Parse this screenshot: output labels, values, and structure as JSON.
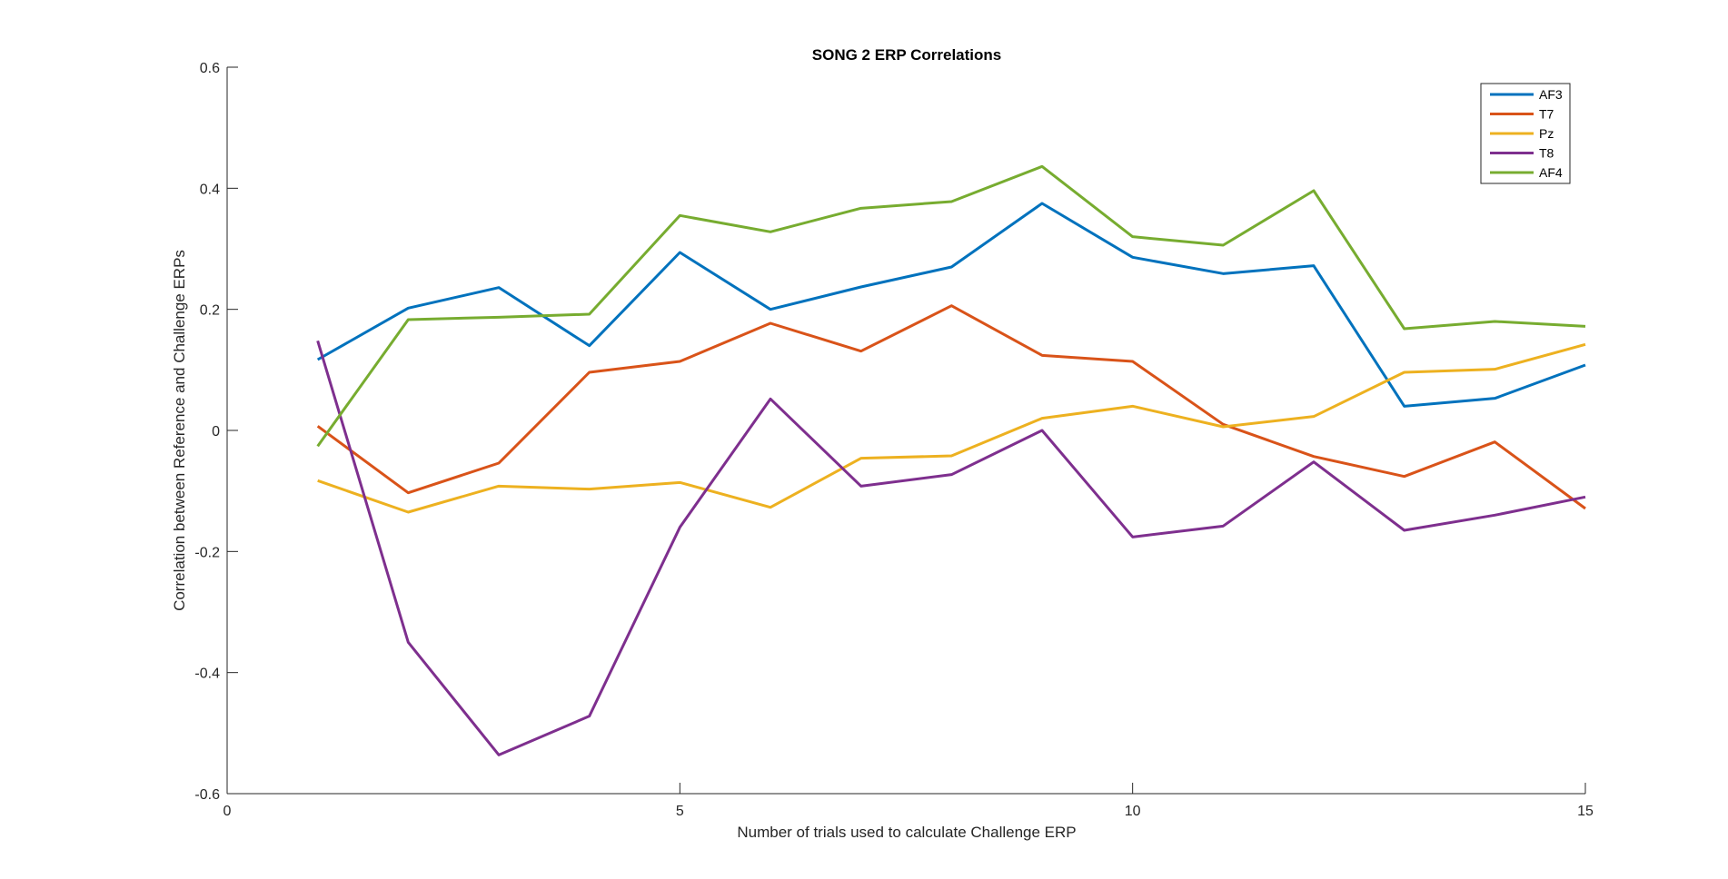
{
  "chart_data": {
    "type": "line",
    "title": "SONG 2 ERP Correlations",
    "xlabel": "Number of trials used to calculate Challenge ERP",
    "ylabel": "Correlation between Reference and Challenge ERPs",
    "xlim": [
      0,
      15
    ],
    "ylim": [
      -0.6,
      0.6
    ],
    "xticks": [
      0,
      5,
      10,
      15
    ],
    "xtick_labels": [
      "0",
      "5",
      "10",
      "15"
    ],
    "yticks": [
      -0.6,
      -0.4,
      -0.2,
      0,
      0.2,
      0.4,
      0.6
    ],
    "ytick_labels": [
      "-0.6",
      "-0.4",
      "-0.2",
      "0",
      "0.2",
      "0.4",
      "0.6"
    ],
    "grid": false,
    "legend_position": "top-right",
    "x": [
      1,
      2,
      3,
      4,
      5,
      6,
      7,
      8,
      9,
      10,
      11,
      12,
      13,
      14,
      15
    ],
    "series": [
      {
        "name": "AF3",
        "color": "#0072BD",
        "values": [
          0.117,
          0.202,
          0.236,
          0.14,
          0.294,
          0.2,
          0.237,
          0.27,
          0.375,
          0.286,
          0.259,
          0.272,
          0.04,
          0.053,
          0.108
        ]
      },
      {
        "name": "T7",
        "color": "#D95319",
        "values": [
          0.007,
          -0.103,
          -0.054,
          0.096,
          0.114,
          0.177,
          0.131,
          0.206,
          0.124,
          0.114,
          0.01,
          -0.043,
          -0.076,
          -0.019,
          -0.129
        ]
      },
      {
        "name": "Pz",
        "color": "#EDB120",
        "values": [
          -0.083,
          -0.135,
          -0.092,
          -0.097,
          -0.086,
          -0.127,
          -0.046,
          -0.042,
          0.02,
          0.04,
          0.006,
          0.023,
          0.096,
          0.101,
          0.142
        ]
      },
      {
        "name": "T8",
        "color": "#7E2F8E",
        "values": [
          0.148,
          -0.35,
          -0.536,
          -0.472,
          -0.16,
          0.052,
          -0.092,
          -0.073,
          0.0,
          -0.176,
          -0.158,
          -0.052,
          -0.165,
          -0.14,
          -0.11
        ]
      },
      {
        "name": "AF4",
        "color": "#77AC30",
        "values": [
          -0.026,
          0.183,
          0.187,
          0.192,
          0.355,
          0.328,
          0.367,
          0.378,
          0.436,
          0.32,
          0.306,
          0.396,
          0.168,
          0.18,
          0.172
        ]
      }
    ]
  }
}
